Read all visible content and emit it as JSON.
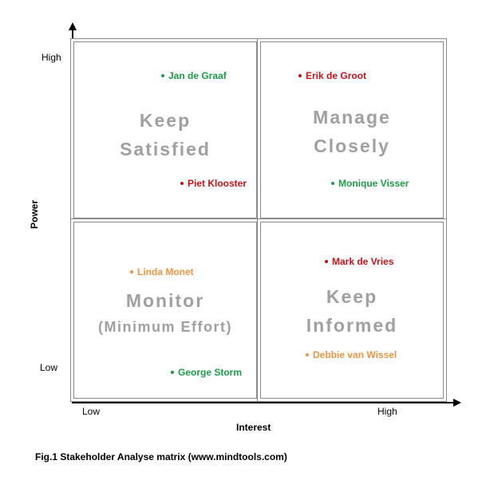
{
  "axes": {
    "y_title": "Power",
    "x_title": "Interest",
    "y_high": "High",
    "y_low": "Low",
    "x_low": "Low",
    "x_high": "High"
  },
  "quadrants": {
    "top_left": {
      "title_line1": "Keep",
      "title_line2": "Satisfied"
    },
    "top_right": {
      "title_line1": "Manage",
      "title_line2": "Closely"
    },
    "bottom_left": {
      "title_line1": "Monitor",
      "title_line2": "(Minimum Effort)"
    },
    "bottom_right": {
      "title_line1": "Keep",
      "title_line2": "Informed"
    }
  },
  "stakeholders": {
    "jan": {
      "name": "Jan de Graaf",
      "color": "#1f9a47"
    },
    "piet": {
      "name": "Piet Klooster",
      "color": "#c0141b"
    },
    "erik": {
      "name": "Erik de Groot",
      "color": "#c0141b"
    },
    "monique": {
      "name": "Monique Visser",
      "color": "#1f9a47"
    },
    "linda": {
      "name": "Linda Monet",
      "color": "#e89645"
    },
    "george": {
      "name": "George Storm",
      "color": "#1f9a47"
    },
    "mark": {
      "name": "Mark de Vries",
      "color": "#c0141b"
    },
    "debbie": {
      "name": "Debbie van Wissel",
      "color": "#e89645"
    }
  },
  "caption": "Fig.1 Stakeholder Analyse matrix (www.mindtools.com)"
}
